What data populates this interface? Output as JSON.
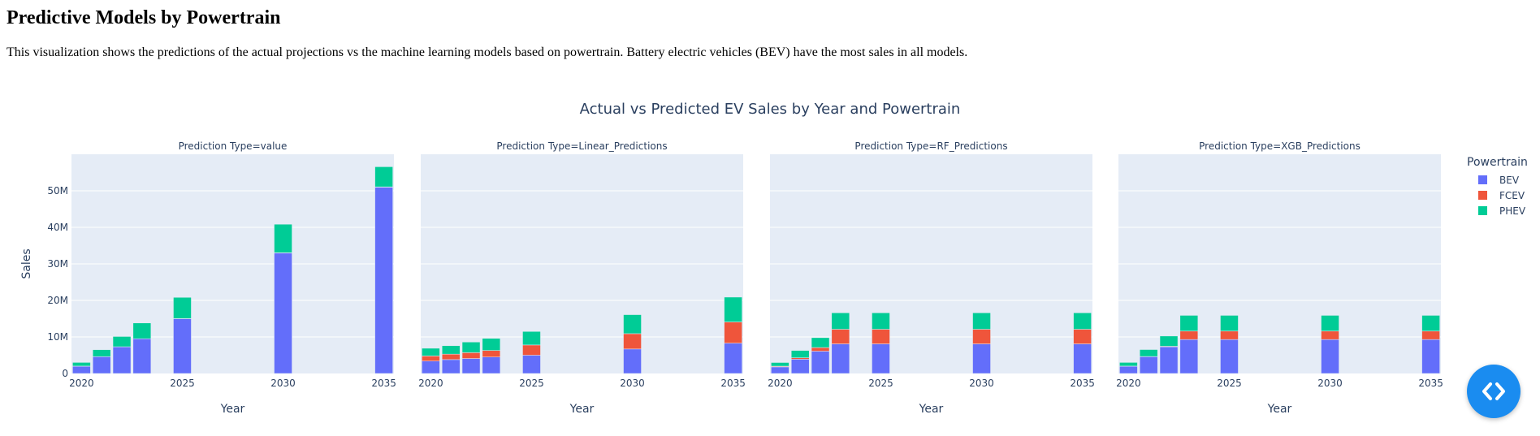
{
  "page": {
    "title": "Predictive Models by Powertrain",
    "description": "This visualization shows the predictions of the actual projections vs the machine learning models based on powertrain. Battery electric vehicles (BEV) have the most sales in all models."
  },
  "chart_data": {
    "type": "bar",
    "barmode": "stack",
    "title": "Actual vs Predicted EV Sales by Year and Powertrain",
    "xlabel": "Year",
    "ylabel": "Sales",
    "ylim": [
      0,
      60000000
    ],
    "yticks": [
      0,
      10000000,
      20000000,
      30000000,
      40000000,
      50000000
    ],
    "ytick_labels": [
      "0",
      "10M",
      "20M",
      "30M",
      "40M",
      "50M"
    ],
    "xlim": [
      2019.5,
      2035.5
    ],
    "xticks": [
      2020,
      2025,
      2030,
      2035
    ],
    "xtick_labels": [
      "2020",
      "2025",
      "2030",
      "2035"
    ],
    "years": [
      2020,
      2021,
      2022,
      2023,
      2025,
      2030,
      2035
    ],
    "legend": {
      "title": "Powertrain",
      "position": "right",
      "entries": [
        {
          "name": "BEV",
          "color": "#636efa"
        },
        {
          "name": "FCEV",
          "color": "#ef553b"
        },
        {
          "name": "PHEV",
          "color": "#00cc96"
        }
      ]
    },
    "facets": [
      {
        "label": "Prediction Type=value",
        "series": [
          {
            "name": "BEV",
            "values": [
              2000000,
              4600000,
              7300000,
              9500000,
              15000000,
              33000000,
              51000000
            ]
          },
          {
            "name": "FCEV",
            "values": [
              20000,
              20000,
              20000,
              20000,
              30000,
              50000,
              80000
            ]
          },
          {
            "name": "PHEV",
            "values": [
              1000000,
              1900000,
              2800000,
              4300000,
              5800000,
              7800000,
              5500000
            ]
          }
        ]
      },
      {
        "label": "Prediction Type=Linear_Predictions",
        "series": [
          {
            "name": "BEV",
            "values": [
              3400000,
              3800000,
              4100000,
              4500000,
              5000000,
              6700000,
              8300000
            ]
          },
          {
            "name": "FCEV",
            "values": [
              1400000,
              1500000,
              1600000,
              1800000,
              2800000,
              4200000,
              5800000
            ]
          },
          {
            "name": "PHEV",
            "values": [
              2100000,
              2300000,
              2900000,
              3300000,
              3700000,
              5200000,
              6800000
            ]
          }
        ]
      },
      {
        "label": "Prediction Type=RF_Predictions",
        "series": [
          {
            "name": "BEV",
            "values": [
              1800000,
              3900000,
              6100000,
              8100000,
              8100000,
              8100000,
              8100000
            ]
          },
          {
            "name": "FCEV",
            "values": [
              200000,
              400000,
              1000000,
              4000000,
              4000000,
              4000000,
              4000000
            ]
          },
          {
            "name": "PHEV",
            "values": [
              1000000,
              2000000,
              2700000,
              4500000,
              4500000,
              4500000,
              4500000
            ]
          }
        ]
      },
      {
        "label": "Prediction Type=XGB_Predictions",
        "series": [
          {
            "name": "BEV",
            "values": [
              2000000,
              4600000,
              7300000,
              9300000,
              9300000,
              9300000,
              9300000
            ]
          },
          {
            "name": "FCEV",
            "values": [
              20000,
              50000,
              150000,
              2300000,
              2300000,
              2300000,
              2300000
            ]
          },
          {
            "name": "PHEV",
            "values": [
              1000000,
              1900000,
              2800000,
              4300000,
              4300000,
              4300000,
              4300000
            ]
          }
        ]
      }
    ]
  },
  "fab": {
    "icon": "code-icon",
    "color": "#1a8cf0"
  }
}
